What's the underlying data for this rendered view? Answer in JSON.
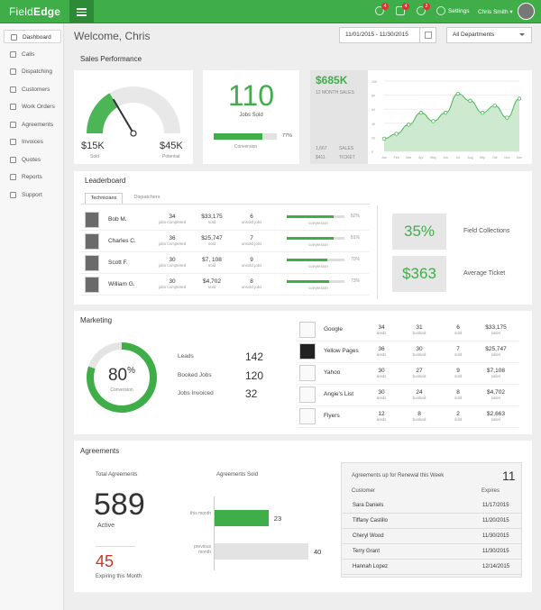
{
  "header": {
    "brand": "Field",
    "brand_bold": "Edge",
    "badges": [
      "4",
      "4",
      "2"
    ],
    "settings": "Settings",
    "user": "Chris Smith"
  },
  "sidebar": {
    "items": [
      "Dashboard",
      "Calls",
      "Dispatching",
      "Customers",
      "Work Orders",
      "Agreements",
      "Invoices",
      "Quotes",
      "Reports",
      "Support"
    ]
  },
  "welcome": "Welcome, Chris",
  "date_range": "11/01/2015 - 11/30/2015",
  "department": "All Departments",
  "sales": {
    "title": "Sales Performance",
    "gauge_value": 0.33,
    "gauge_left": "$15K",
    "gauge_left_label": "Sold",
    "gauge_right": "$45K",
    "gauge_right_label": "Potential",
    "jobs_sold": "110",
    "jobs_sold_label": "Jobs Sold",
    "conversion_pct": 0.77,
    "conversion_text": "77%",
    "conversion_label": "Conversion",
    "twelve_month": "$685K",
    "twelve_month_label": "12 MONTH SALES",
    "tickets": "1,667",
    "tickets_value": "$411",
    "sales_label": "SALES",
    "ticket_label": "TICKET"
  },
  "chart_data": {
    "type": "area",
    "x": [
      "Jan",
      "Feb",
      "Mar",
      "Apr",
      "May",
      "Jun",
      "Jul",
      "Aug",
      "Sep",
      "Oct",
      "Nov",
      "Dec"
    ],
    "ylim": [
      0,
      100
    ],
    "yticks": [
      "100",
      "80",
      "60",
      "40",
      "20",
      "0"
    ],
    "values": [
      18,
      25,
      38,
      55,
      43,
      55,
      82,
      72,
      55,
      65,
      48,
      75
    ],
    "color": "#4cb556"
  },
  "leaderboard": {
    "title": "Leaderboard",
    "tabs": [
      "Technicians",
      "Dispatchers"
    ],
    "rows": [
      {
        "name": "Bob M.",
        "jobs": "34",
        "sold": "$33,175",
        "unsold": "6",
        "conv": 0.82,
        "conv_text": "82%"
      },
      {
        "name": "Charles C.",
        "jobs": "36",
        "sold": "$25,747",
        "unsold": "7",
        "conv": 0.81,
        "conv_text": "81%"
      },
      {
        "name": "Scott F.",
        "jobs": "30",
        "sold": "$7, 108",
        "unsold": "9",
        "conv": 0.7,
        "conv_text": "70%"
      },
      {
        "name": "William G.",
        "jobs": "30",
        "sold": "$4,702",
        "unsold": "8",
        "conv": 0.73,
        "conv_text": "73%"
      }
    ],
    "jobs_label": "jobs completed",
    "sold_label": "sold",
    "unsold_label": "unsold jobs",
    "conv_label": "conversion",
    "field_collections": "35%",
    "field_collections_label": "Field Collections",
    "avg_ticket": "$363",
    "avg_ticket_label": "Average Ticket"
  },
  "marketing": {
    "title": "Marketing",
    "conversion": "80",
    "pct": "%",
    "conversion_label": "Conversion",
    "ring": 0.8,
    "stats": [
      {
        "label": "Leads",
        "value": "142"
      },
      {
        "label": "Booked Jobs",
        "value": "120"
      },
      {
        "label": "Jobs Invoiced",
        "value": "32"
      }
    ],
    "sources": [
      {
        "name": "Google",
        "leads": "34",
        "booked": "31",
        "sold": "6",
        "sales": "$33,175"
      },
      {
        "name": "Yellow Pages",
        "leads": "36",
        "booked": "30",
        "sold": "7",
        "sales": "$25,747"
      },
      {
        "name": "Yahoo",
        "leads": "30",
        "booked": "27",
        "sold": "9",
        "sales": "$7,108"
      },
      {
        "name": "Angie's List",
        "leads": "30",
        "booked": "24",
        "sold": "8",
        "sales": "$4,702"
      },
      {
        "name": "Flyers",
        "leads": "12",
        "booked": "8",
        "sold": "2",
        "sales": "$2,663"
      }
    ],
    "leads_label": "leads",
    "booked_label": "booked",
    "sold_label": "sold",
    "sales_label": "sales"
  },
  "agreements": {
    "title": "Agreements",
    "total_label": "Total Agreements",
    "total": "589",
    "active": "Active",
    "expiring": "45",
    "expiring_label": "Expiring this Month",
    "sold_title": "Agreements Sold",
    "this_month": "this month",
    "this_value": 23,
    "this_text": "23",
    "prev_month": "previous month",
    "prev_value": 40,
    "prev_text": "40",
    "renewal_title": "Agreements up for Renewal this Week",
    "renewal_count": "11",
    "col_customer": "Customer",
    "col_expires": "Expires",
    "renewals": [
      {
        "c": "Sara Daniels",
        "e": "11/17/2015"
      },
      {
        "c": "Tiffany Castillo",
        "e": "11/20/2015"
      },
      {
        "c": "Cheryl Wood",
        "e": "11/30/2015"
      },
      {
        "c": "Terry Grant",
        "e": "11/30/2015"
      },
      {
        "c": "Hannah Lopez",
        "e": "12/14/2015"
      }
    ]
  }
}
